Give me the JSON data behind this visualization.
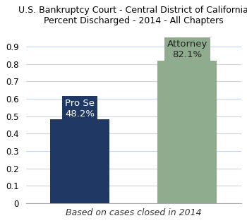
{
  "title_line1": "U.S. Bankruptcy Court - Central District of California",
  "title_line2": "Percent Discharged - 2014 - All Chapters",
  "categories": [
    "Pro Se",
    "Attorney"
  ],
  "values": [
    0.482,
    0.821
  ],
  "bar_colors": [
    "#1f3864",
    "#8fac8f"
  ],
  "label_texts": [
    "Pro Se\n48.2%",
    "Attorney\n82.1%"
  ],
  "label_text_colors": [
    "white",
    "#222222"
  ],
  "label_box_colors": [
    "#1f3864",
    "#8fac8f"
  ],
  "xlabel": "Based on cases closed in 2014",
  "ylim": [
    0,
    1.0
  ],
  "yticks": [
    0,
    0.1,
    0.2,
    0.3,
    0.4,
    0.5,
    0.6,
    0.7,
    0.8,
    0.9
  ],
  "background_color": "#ffffff",
  "grid_color": "#c8d8e8",
  "title_fontsize": 9.0,
  "label_fontsize": 9.5,
  "xlabel_fontsize": 9,
  "tick_fontsize": 8.5
}
